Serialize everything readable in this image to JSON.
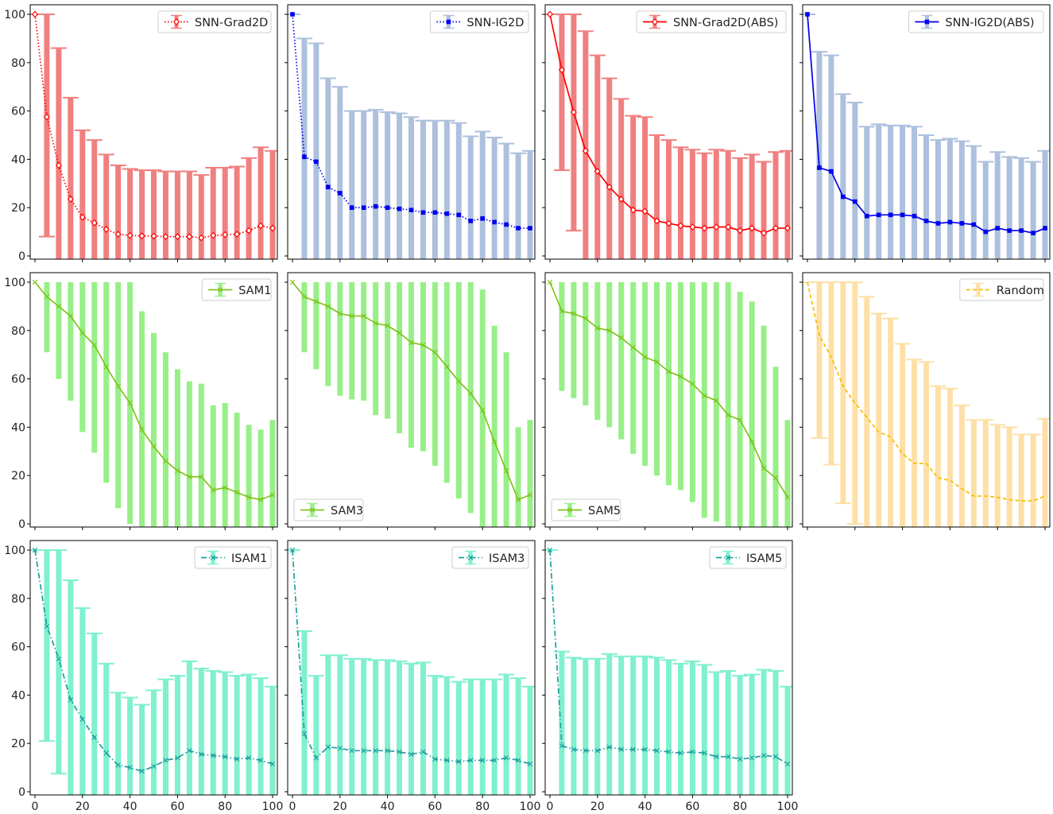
{
  "chart_data": [
    {
      "id": "snn-grad2d",
      "type": "line",
      "legend": "SNN-Grad2D",
      "legend_position": "top-right",
      "color": "#ff0000",
      "bar_color": "#f08080",
      "linestyle": "dotted",
      "marker": "diamond",
      "x": [
        0,
        5,
        10,
        15,
        20,
        25,
        30,
        35,
        40,
        45,
        50,
        55,
        60,
        65,
        70,
        75,
        80,
        85,
        90,
        95,
        100
      ],
      "values": [
        100,
        57.5,
        37.5,
        23.5,
        16,
        13.7,
        11,
        9,
        8.5,
        8.3,
        8.2,
        8,
        8,
        8,
        7.5,
        8.5,
        8.8,
        9,
        10.5,
        12.5,
        11.5
      ],
      "err_high": [
        100,
        100,
        86,
        65.5,
        52,
        48,
        42,
        37.5,
        36,
        35.5,
        35.5,
        35,
        35,
        35,
        33.5,
        36.5,
        36.5,
        37,
        40.5,
        45,
        43.5
      ],
      "err_low": [
        100,
        8,
        null,
        null,
        null,
        null,
        null,
        null,
        null,
        null,
        null,
        null,
        null,
        null,
        null,
        null,
        null,
        null,
        null,
        null,
        null
      ],
      "xlim": [
        0,
        100
      ],
      "ylim": [
        0,
        100
      ],
      "xticks": [
        "0",
        "20",
        "40",
        "60",
        "80",
        "100"
      ],
      "yticks": [
        "0",
        "20",
        "40",
        "60",
        "80",
        "100"
      ]
    },
    {
      "id": "snn-ig2d",
      "type": "line",
      "legend": "SNN-IG2D",
      "legend_position": "top-right",
      "color": "#0000ee",
      "bar_color": "#adc0dd",
      "linestyle": "dotted",
      "marker": "square",
      "x": [
        0,
        5,
        10,
        15,
        20,
        25,
        30,
        35,
        40,
        45,
        50,
        55,
        60,
        65,
        70,
        75,
        80,
        85,
        90,
        95,
        100
      ],
      "values": [
        100,
        41,
        39,
        28.5,
        26,
        20,
        20,
        20.5,
        20,
        19.5,
        19,
        18,
        18,
        17.5,
        17,
        14.5,
        15.5,
        14,
        13,
        11.5,
        11.5
      ],
      "err_high": [
        100,
        90,
        88,
        73.5,
        70,
        60,
        60,
        60.5,
        59.5,
        59,
        57.5,
        56,
        56,
        56,
        55,
        49.5,
        51.5,
        49,
        46.5,
        42.5,
        43.5
      ],
      "err_low": [
        100,
        null,
        null,
        null,
        null,
        null,
        null,
        null,
        null,
        null,
        null,
        null,
        null,
        null,
        null,
        null,
        null,
        null,
        null,
        null,
        null
      ],
      "xlim": [
        0,
        100
      ],
      "ylim": [
        0,
        100
      ],
      "xticks": [
        "0",
        "20",
        "40",
        "60",
        "80",
        "100"
      ],
      "yticks": [
        "0",
        "20",
        "40",
        "60",
        "80",
        "100"
      ]
    },
    {
      "id": "snn-grad2d-abs",
      "type": "line",
      "legend": "SNN-Grad2D(ABS)",
      "legend_position": "top-right",
      "color": "#ff0000",
      "bar_color": "#f08080",
      "linestyle": "solid",
      "marker": "diamond",
      "x": [
        0,
        5,
        10,
        15,
        20,
        25,
        30,
        35,
        40,
        45,
        50,
        55,
        60,
        65,
        70,
        75,
        80,
        85,
        90,
        95,
        100
      ],
      "values": [
        100,
        77,
        59.5,
        43.5,
        35,
        28.5,
        23.5,
        19,
        18.5,
        14.5,
        13.5,
        12.5,
        12,
        11.5,
        12,
        12,
        10.5,
        11.5,
        9.5,
        11.5,
        11.5
      ],
      "err_high": [
        100,
        100,
        100,
        93,
        83,
        73.5,
        65,
        58,
        57.5,
        50,
        48,
        45,
        44,
        42.5,
        44,
        43.5,
        40.5,
        42,
        39,
        43,
        43.5
      ],
      "err_low": [
        100,
        35.5,
        10.5,
        null,
        null,
        null,
        null,
        null,
        null,
        null,
        null,
        null,
        null,
        null,
        null,
        null,
        null,
        null,
        null,
        null,
        null
      ],
      "xlim": [
        0,
        100
      ],
      "ylim": [
        0,
        100
      ],
      "xticks": [
        "0",
        "20",
        "40",
        "60",
        "80",
        "100"
      ],
      "yticks": [
        "0",
        "20",
        "40",
        "60",
        "80",
        "100"
      ]
    },
    {
      "id": "snn-ig2d-abs",
      "type": "line",
      "legend": "SNN-IG2D(ABS)",
      "legend_position": "top-right",
      "color": "#0000ee",
      "bar_color": "#adc0dd",
      "linestyle": "solid",
      "marker": "square",
      "x": [
        0,
        5,
        10,
        15,
        20,
        25,
        30,
        35,
        40,
        45,
        50,
        55,
        60,
        65,
        70,
        75,
        80,
        85,
        90,
        95,
        100
      ],
      "values": [
        100,
        36.5,
        35,
        24.5,
        22.5,
        16.5,
        17,
        17,
        17,
        16.5,
        14.5,
        13.5,
        14,
        13.5,
        13,
        10,
        11.5,
        10.5,
        10.5,
        9.5,
        11.5
      ],
      "err_high": [
        100,
        84.5,
        83,
        67,
        63.5,
        53.5,
        54.5,
        54,
        54,
        53.5,
        50,
        48,
        48.5,
        47.5,
        45.5,
        39,
        43,
        41,
        40.5,
        39,
        43.5
      ],
      "err_low": [
        100,
        null,
        null,
        null,
        null,
        null,
        null,
        null,
        null,
        null,
        null,
        null,
        null,
        null,
        null,
        null,
        null,
        null,
        null,
        null,
        null
      ],
      "xlim": [
        0,
        100
      ],
      "ylim": [
        0,
        100
      ],
      "xticks": [
        "0",
        "20",
        "40",
        "60",
        "80",
        "100"
      ],
      "yticks": [
        "0",
        "20",
        "40",
        "60",
        "80",
        "100"
      ]
    },
    {
      "id": "sam1",
      "type": "line",
      "legend": "SAM1",
      "legend_position": "top-right",
      "color": "#7fc41c",
      "bar_color": "#98ef88",
      "linestyle": "solid",
      "marker": "x",
      "x": [
        0,
        5,
        10,
        15,
        20,
        25,
        30,
        35,
        40,
        45,
        50,
        55,
        60,
        65,
        70,
        75,
        80,
        85,
        90,
        95,
        100
      ],
      "values": [
        100,
        94,
        90,
        86,
        79,
        74,
        65,
        57,
        50,
        39,
        32,
        26,
        22,
        19.5,
        19.5,
        14,
        15,
        13,
        11,
        10,
        12
      ],
      "err_high": [
        100,
        100,
        100,
        100,
        100,
        100,
        100,
        100,
        100,
        88,
        79,
        71,
        64,
        59,
        58,
        49,
        50,
        46,
        41,
        39,
        43
      ],
      "err_low": [
        100,
        71,
        60,
        51,
        38,
        29.5,
        17,
        6.5,
        0,
        null,
        null,
        null,
        null,
        null,
        null,
        null,
        null,
        null,
        null,
        null,
        null
      ],
      "xlim": [
        0,
        100
      ],
      "ylim": [
        0,
        100
      ],
      "xticks": [
        "0",
        "20",
        "40",
        "60",
        "80",
        "100"
      ],
      "yticks": [
        "0",
        "20",
        "40",
        "60",
        "80",
        "100"
      ]
    },
    {
      "id": "sam3",
      "type": "line",
      "legend": "SAM3",
      "legend_position": "bottom-left",
      "color": "#7fc41c",
      "bar_color": "#98ef88",
      "linestyle": "solid",
      "marker": "x",
      "x": [
        0,
        5,
        10,
        15,
        20,
        25,
        30,
        35,
        40,
        45,
        50,
        55,
        60,
        65,
        70,
        75,
        80,
        85,
        90,
        95,
        100
      ],
      "values": [
        100,
        94,
        92,
        90,
        87,
        86,
        86,
        83,
        82,
        79,
        75,
        74,
        71,
        65,
        59,
        54,
        47,
        34,
        22,
        10,
        12
      ],
      "err_high": [
        100,
        100,
        100,
        100,
        100,
        100,
        100,
        100,
        100,
        100,
        100,
        100,
        100,
        100,
        100,
        100,
        97,
        82,
        71,
        40,
        43
      ],
      "err_low": [
        100,
        71,
        64,
        57,
        53,
        51.5,
        51,
        45,
        43.5,
        37.5,
        31.5,
        30,
        24,
        17,
        10.5,
        4.5,
        null,
        null,
        null,
        null,
        null
      ],
      "xlim": [
        0,
        100
      ],
      "ylim": [
        0,
        100
      ],
      "xticks": [
        "0",
        "20",
        "40",
        "60",
        "80",
        "100"
      ],
      "yticks": [
        "0",
        "20",
        "40",
        "60",
        "80",
        "100"
      ]
    },
    {
      "id": "sam5",
      "type": "line",
      "legend": "SAM5",
      "legend_position": "bottom-left",
      "color": "#7fc41c",
      "bar_color": "#98ef88",
      "linestyle": "solid",
      "marker": "x",
      "x": [
        0,
        5,
        10,
        15,
        20,
        25,
        30,
        35,
        40,
        45,
        50,
        55,
        60,
        65,
        70,
        75,
        80,
        85,
        90,
        95,
        100
      ],
      "values": [
        100,
        88,
        87,
        85,
        81,
        80,
        77,
        73,
        69,
        67,
        63,
        61,
        58,
        53,
        51,
        45,
        43,
        34,
        23,
        19,
        11
      ],
      "err_high": [
        100,
        100,
        100,
        100,
        100,
        100,
        100,
        100,
        100,
        100,
        100,
        100,
        100,
        100,
        100,
        100,
        96,
        92,
        82,
        65,
        43
      ],
      "err_low": [
        100,
        55,
        52,
        49,
        43,
        40,
        35,
        29,
        24,
        20,
        16,
        14,
        9,
        2.5,
        1,
        null,
        null,
        null,
        null,
        null,
        null
      ],
      "xlim": [
        0,
        100
      ],
      "ylim": [
        0,
        100
      ],
      "xticks": [
        "0",
        "20",
        "40",
        "60",
        "80",
        "100"
      ],
      "yticks": [
        "0",
        "20",
        "40",
        "60",
        "80",
        "100"
      ]
    },
    {
      "id": "random",
      "type": "line",
      "legend": "Random",
      "legend_position": "top-right",
      "color": "#f5c000",
      "bar_color": "#fde0a8",
      "linestyle": "dashed",
      "marker": "none",
      "x": [
        0,
        5,
        10,
        15,
        20,
        25,
        30,
        35,
        40,
        45,
        50,
        55,
        60,
        65,
        70,
        75,
        80,
        85,
        90,
        95,
        100
      ],
      "values": [
        100,
        78,
        69,
        57,
        50,
        44,
        38,
        36,
        29,
        25,
        25,
        19,
        18,
        14.5,
        11.5,
        11.5,
        11,
        10,
        9.5,
        9.5,
        11.5
      ],
      "err_high": [
        100,
        100,
        100,
        100,
        100,
        94,
        87,
        85,
        74.5,
        68,
        67,
        57,
        56,
        49,
        43,
        43,
        41,
        40,
        37,
        37,
        43.5
      ],
      "err_low": [
        100,
        35.5,
        24.5,
        8.5,
        0,
        null,
        null,
        null,
        null,
        null,
        null,
        null,
        null,
        null,
        null,
        null,
        null,
        null,
        null,
        null,
        null
      ],
      "xlim": [
        0,
        100
      ],
      "ylim": [
        0,
        100
      ],
      "xticks": [
        "0",
        "20",
        "40",
        "60",
        "80",
        "100"
      ],
      "yticks": [
        "0",
        "20",
        "40",
        "60",
        "80",
        "100"
      ]
    },
    {
      "id": "isam1",
      "type": "line",
      "legend": "ISAM1",
      "legend_position": "top-right",
      "color": "#1e9e9e",
      "bar_color": "#80f0cf",
      "linestyle": "dashdot",
      "marker": "x",
      "x": [
        0,
        5,
        10,
        15,
        20,
        25,
        30,
        35,
        40,
        45,
        50,
        55,
        60,
        65,
        70,
        75,
        80,
        85,
        90,
        95,
        100
      ],
      "values": [
        100,
        68.5,
        55,
        38,
        30,
        22.5,
        16,
        11,
        10,
        8.5,
        10.5,
        13,
        14,
        17,
        15.5,
        15,
        14.5,
        13.5,
        14,
        13,
        11.5
      ],
      "err_high": [
        100,
        100,
        100,
        87.5,
        76,
        65.5,
        53,
        41,
        39,
        36,
        42,
        46.5,
        48,
        54,
        51,
        50,
        49.5,
        48,
        48.5,
        47,
        43.5
      ],
      "err_low": [
        100,
        21,
        7.5,
        null,
        null,
        null,
        null,
        null,
        null,
        null,
        null,
        null,
        null,
        null,
        null,
        null,
        null,
        null,
        null,
        null,
        null
      ],
      "xlim": [
        0,
        100
      ],
      "ylim": [
        0,
        100
      ],
      "xticks": [
        "0",
        "20",
        "40",
        "60",
        "80",
        "100"
      ],
      "yticks": [
        "0",
        "20",
        "40",
        "60",
        "80",
        "100"
      ]
    },
    {
      "id": "isam3",
      "type": "line",
      "legend": "ISAM3",
      "legend_position": "top-right",
      "color": "#1e9e9e",
      "bar_color": "#80f0cf",
      "linestyle": "dashdot",
      "marker": "x",
      "x": [
        0,
        5,
        10,
        15,
        20,
        25,
        30,
        35,
        40,
        45,
        50,
        55,
        60,
        65,
        70,
        75,
        80,
        85,
        90,
        95,
        100
      ],
      "values": [
        100,
        24,
        14,
        18.5,
        18,
        17,
        17,
        17,
        17,
        16.5,
        15.5,
        16.5,
        13.5,
        13,
        12.5,
        13,
        13,
        13,
        14,
        13,
        11.5
      ],
      "err_high": [
        100,
        66.5,
        48,
        56.5,
        56.5,
        55,
        55,
        54.5,
        54.5,
        54,
        53,
        53.5,
        48,
        47.5,
        45.5,
        46.5,
        46.5,
        46.5,
        48.5,
        47,
        43.5
      ],
      "err_low": [
        100,
        null,
        null,
        null,
        null,
        null,
        null,
        null,
        null,
        null,
        null,
        null,
        null,
        null,
        null,
        null,
        null,
        null,
        null,
        null,
        null
      ],
      "xlim": [
        0,
        100
      ],
      "ylim": [
        0,
        100
      ],
      "xticks": [
        "0",
        "20",
        "40",
        "60",
        "80",
        "100"
      ],
      "yticks": [
        "0",
        "20",
        "40",
        "60",
        "80",
        "100"
      ]
    },
    {
      "id": "isam5",
      "type": "line",
      "legend": "ISAM5",
      "legend_position": "top-right",
      "color": "#1e9e9e",
      "bar_color": "#80f0cf",
      "linestyle": "dashdot",
      "marker": "x",
      "x": [
        0,
        5,
        10,
        15,
        20,
        25,
        30,
        35,
        40,
        45,
        50,
        55,
        60,
        65,
        70,
        75,
        80,
        85,
        90,
        95,
        100
      ],
      "values": [
        100,
        19,
        17.5,
        17,
        17,
        18.5,
        17.5,
        17.5,
        17.5,
        17,
        16.5,
        16,
        16.5,
        16,
        14.5,
        14.5,
        13.5,
        14,
        15,
        14.5,
        11.5
      ],
      "err_high": [
        100,
        58,
        55.5,
        55,
        55,
        57,
        56,
        56,
        56,
        55.5,
        54.5,
        53,
        54,
        52.5,
        49.5,
        50,
        48,
        48.5,
        50.5,
        50,
        43.5
      ],
      "err_low": [
        100,
        null,
        null,
        null,
        null,
        null,
        null,
        null,
        null,
        null,
        null,
        null,
        null,
        null,
        null,
        null,
        null,
        null,
        null,
        null,
        null
      ],
      "xlim": [
        0,
        100
      ],
      "ylim": [
        0,
        100
      ],
      "xticks": [
        "0",
        "20",
        "40",
        "60",
        "80",
        "100"
      ],
      "yticks": [
        "0",
        "20",
        "40",
        "60",
        "80",
        "100"
      ]
    }
  ]
}
